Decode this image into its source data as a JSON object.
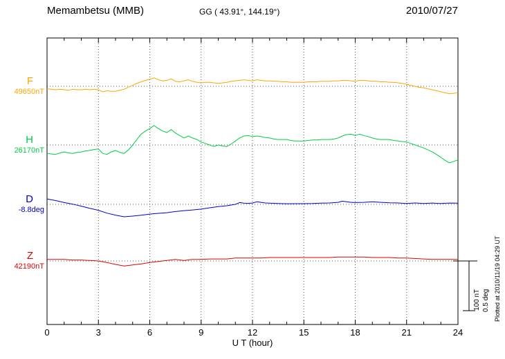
{
  "chart_data": {
    "type": "line",
    "title": "Memambetsu (MMB)",
    "subtitle": "GG ( 43.91°, 144.19°)",
    "date": "2010/07/27",
    "xlabel": "U T (hour)",
    "x_range": [
      0,
      24
    ],
    "x_ticks": [
      0,
      3,
      6,
      9,
      12,
      15,
      18,
      21,
      24
    ],
    "x_minor_step_hours": 1,
    "grid": {
      "vertical": "dotted lines at 3-hour ticks",
      "horizontal": "dotted line at each series baseline"
    },
    "scale": {
      "nT_per_bar": 100,
      "deg_per_bar": 0.5,
      "nT_label": "100 nT",
      "deg_label": "0.5 deg"
    },
    "plotted_at": "Plotted at 2010/11/19 04:29 UT",
    "series": [
      {
        "id": "F",
        "label": "F",
        "baseline_label": "49650nT",
        "baseline_value": 49650,
        "unit": "nT",
        "color": "#FFA500",
        "points_t_offset": [
          [
            0,
            -5
          ],
          [
            0.25,
            -6
          ],
          [
            0.5,
            -7
          ],
          [
            0.75,
            -6
          ],
          [
            1,
            -7
          ],
          [
            1.25,
            -8
          ],
          [
            1.5,
            -6
          ],
          [
            1.75,
            -7
          ],
          [
            2,
            -7
          ],
          [
            2.25,
            -6
          ],
          [
            2.5,
            -7
          ],
          [
            2.75,
            -6
          ],
          [
            3,
            -7
          ],
          [
            3.25,
            -11
          ],
          [
            3.5,
            -9
          ],
          [
            3.75,
            -10
          ],
          [
            4,
            -10
          ],
          [
            4.25,
            -8
          ],
          [
            4.5,
            -6
          ],
          [
            4.75,
            -2
          ],
          [
            5,
            2
          ],
          [
            5.25,
            6
          ],
          [
            5.5,
            9
          ],
          [
            5.75,
            12
          ],
          [
            6,
            14
          ],
          [
            6.25,
            17
          ],
          [
            6.5,
            13
          ],
          [
            6.75,
            11
          ],
          [
            7,
            12
          ],
          [
            7.25,
            15
          ],
          [
            7.5,
            10
          ],
          [
            7.75,
            9
          ],
          [
            8,
            11
          ],
          [
            8.25,
            13
          ],
          [
            8.5,
            10
          ],
          [
            8.75,
            8
          ],
          [
            9,
            7
          ],
          [
            9.25,
            8
          ],
          [
            9.5,
            8
          ],
          [
            9.75,
            7
          ],
          [
            10,
            6
          ],
          [
            10.25,
            7
          ],
          [
            10.5,
            8
          ],
          [
            10.75,
            10
          ],
          [
            11,
            11
          ],
          [
            11.25,
            12
          ],
          [
            11.5,
            13
          ],
          [
            11.75,
            12
          ],
          [
            12,
            11
          ],
          [
            12.25,
            13
          ],
          [
            12.5,
            12
          ],
          [
            12.75,
            11
          ],
          [
            13,
            11
          ],
          [
            13.25,
            10
          ],
          [
            13.5,
            10
          ],
          [
            13.75,
            9
          ],
          [
            14,
            9
          ],
          [
            14.25,
            8
          ],
          [
            14.5,
            8
          ],
          [
            14.75,
            8
          ],
          [
            15,
            8
          ],
          [
            15.25,
            9
          ],
          [
            15.5,
            9
          ],
          [
            15.75,
            9
          ],
          [
            16,
            10
          ],
          [
            16.25,
            10
          ],
          [
            16.5,
            10
          ],
          [
            16.75,
            11
          ],
          [
            17,
            11
          ],
          [
            17.25,
            12
          ],
          [
            17.5,
            12
          ],
          [
            17.75,
            11
          ],
          [
            18,
            10
          ],
          [
            18.25,
            12
          ],
          [
            18.5,
            12
          ],
          [
            18.75,
            11
          ],
          [
            19,
            10
          ],
          [
            19.25,
            10
          ],
          [
            19.5,
            9
          ],
          [
            19.75,
            9
          ],
          [
            20,
            8
          ],
          [
            20.25,
            8
          ],
          [
            20.5,
            7
          ],
          [
            20.75,
            6
          ],
          [
            21,
            4
          ],
          [
            21.25,
            2
          ],
          [
            21.5,
            0
          ],
          [
            21.75,
            -2
          ],
          [
            22,
            -3
          ],
          [
            22.25,
            -5
          ],
          [
            22.5,
            -7
          ],
          [
            22.75,
            -9
          ],
          [
            23,
            -11
          ],
          [
            23.25,
            -13
          ],
          [
            23.5,
            -15
          ],
          [
            23.75,
            -14
          ],
          [
            24,
            -13
          ]
        ]
      },
      {
        "id": "H",
        "label": "H",
        "baseline_label": "26170nT",
        "baseline_value": 26170,
        "unit": "nT",
        "color": "#00CC44",
        "points_t_offset": [
          [
            0,
            -17
          ],
          [
            0.25,
            -18
          ],
          [
            0.5,
            -19
          ],
          [
            0.75,
            -16
          ],
          [
            1,
            -14
          ],
          [
            1.25,
            -16
          ],
          [
            1.5,
            -17
          ],
          [
            1.75,
            -15
          ],
          [
            2,
            -14
          ],
          [
            2.25,
            -12
          ],
          [
            2.5,
            -11
          ],
          [
            2.75,
            -9
          ],
          [
            3,
            -8
          ],
          [
            3.25,
            -17
          ],
          [
            3.5,
            -19
          ],
          [
            3.75,
            -14
          ],
          [
            4,
            -11
          ],
          [
            4.25,
            -15
          ],
          [
            4.5,
            -17
          ],
          [
            4.75,
            -10
          ],
          [
            5,
            0
          ],
          [
            5.25,
            11
          ],
          [
            5.5,
            22
          ],
          [
            5.75,
            28
          ],
          [
            6,
            33
          ],
          [
            6.25,
            39
          ],
          [
            6.5,
            33
          ],
          [
            6.75,
            28
          ],
          [
            7,
            25
          ],
          [
            7.25,
            31
          ],
          [
            7.5,
            24
          ],
          [
            7.75,
            19
          ],
          [
            8,
            14
          ],
          [
            8.25,
            18
          ],
          [
            8.5,
            14
          ],
          [
            8.75,
            11
          ],
          [
            9,
            6
          ],
          [
            9.25,
            3
          ],
          [
            9.5,
            0
          ],
          [
            9.75,
            -3
          ],
          [
            10,
            0
          ],
          [
            10.25,
            -2
          ],
          [
            10.5,
            -3
          ],
          [
            10.75,
            2
          ],
          [
            11,
            8
          ],
          [
            11.25,
            14
          ],
          [
            11.5,
            18
          ],
          [
            11.75,
            19
          ],
          [
            12,
            17
          ],
          [
            12.25,
            18
          ],
          [
            12.5,
            17
          ],
          [
            12.75,
            15
          ],
          [
            13,
            14
          ],
          [
            13.25,
            12
          ],
          [
            13.5,
            11
          ],
          [
            13.75,
            11
          ],
          [
            14,
            11
          ],
          [
            14.25,
            9
          ],
          [
            14.5,
            8
          ],
          [
            14.75,
            8
          ],
          [
            15,
            8
          ],
          [
            15.25,
            9
          ],
          [
            15.5,
            10
          ],
          [
            15.75,
            10
          ],
          [
            16,
            11
          ],
          [
            16.25,
            11
          ],
          [
            16.5,
            11
          ],
          [
            16.75,
            12
          ],
          [
            17,
            14
          ],
          [
            17.25,
            18
          ],
          [
            17.5,
            21
          ],
          [
            17.75,
            22
          ],
          [
            18,
            19
          ],
          [
            18.25,
            22
          ],
          [
            18.5,
            19
          ],
          [
            18.75,
            17
          ],
          [
            19,
            14
          ],
          [
            19.25,
            12
          ],
          [
            19.5,
            11
          ],
          [
            19.75,
            11
          ],
          [
            20,
            11
          ],
          [
            20.25,
            9
          ],
          [
            20.5,
            8
          ],
          [
            20.75,
            7
          ],
          [
            21,
            6
          ],
          [
            21.25,
            3
          ],
          [
            21.5,
            0
          ],
          [
            21.75,
            -3
          ],
          [
            22,
            -6
          ],
          [
            22.25,
            -10
          ],
          [
            22.5,
            -14
          ],
          [
            22.75,
            -19
          ],
          [
            23,
            -25
          ],
          [
            23.25,
            -31
          ],
          [
            23.5,
            -36
          ],
          [
            23.75,
            -33
          ],
          [
            24,
            -30
          ]
        ]
      },
      {
        "id": "D",
        "label": "D",
        "baseline_label": "-8.8deg",
        "baseline_value": -8.8,
        "unit": "deg",
        "color": "#0000CC",
        "points_t_offset": [
          [
            0,
            0.055
          ],
          [
            0.5,
            0.038
          ],
          [
            1,
            0.018
          ],
          [
            1.5,
            0.002
          ],
          [
            2,
            -0.018
          ],
          [
            2.5,
            -0.04
          ],
          [
            3,
            -0.06
          ],
          [
            3.5,
            -0.088
          ],
          [
            4,
            -0.108
          ],
          [
            4.5,
            -0.125
          ],
          [
            5,
            -0.118
          ],
          [
            5.5,
            -0.11
          ],
          [
            6,
            -0.098
          ],
          [
            6.5,
            -0.09
          ],
          [
            7,
            -0.084
          ],
          [
            7.5,
            -0.072
          ],
          [
            8,
            -0.063
          ],
          [
            8.5,
            -0.056
          ],
          [
            9,
            -0.048
          ],
          [
            9.5,
            -0.035
          ],
          [
            10,
            -0.022
          ],
          [
            10.5,
            -0.014
          ],
          [
            11,
            0
          ],
          [
            11.25,
            0.018
          ],
          [
            11.5,
            0.012
          ],
          [
            11.75,
            0.01
          ],
          [
            12,
            0.014
          ],
          [
            12.25,
            0.026
          ],
          [
            12.5,
            0.02
          ],
          [
            12.75,
            0.014
          ],
          [
            13,
            0.012
          ],
          [
            13.5,
            0.008
          ],
          [
            14,
            0.006
          ],
          [
            14.5,
            0.007
          ],
          [
            15,
            0.007
          ],
          [
            15.5,
            0.008
          ],
          [
            16,
            0.012
          ],
          [
            16.5,
            0.014
          ],
          [
            17,
            0.02
          ],
          [
            17.25,
            0.032
          ],
          [
            17.5,
            0.026
          ],
          [
            17.75,
            0.02
          ],
          [
            18,
            0.018
          ],
          [
            18.5,
            0.02
          ],
          [
            19,
            0.026
          ],
          [
            19.5,
            0.02
          ],
          [
            20,
            0.015
          ],
          [
            20.5,
            0.014
          ],
          [
            21,
            0.008
          ],
          [
            21.5,
            0.014
          ],
          [
            22,
            0.008
          ],
          [
            22.5,
            0.013
          ],
          [
            23,
            0.008
          ],
          [
            23.5,
            0.013
          ],
          [
            24,
            0.012
          ]
        ]
      },
      {
        "id": "Z",
        "label": "Z",
        "baseline_label": "42190nT",
        "baseline_value": 42190,
        "unit": "nT",
        "color": "#DD0000",
        "points_t_offset": [
          [
            0,
            3
          ],
          [
            0.5,
            3
          ],
          [
            1,
            3
          ],
          [
            1.5,
            2
          ],
          [
            2,
            2
          ],
          [
            2.5,
            1
          ],
          [
            3,
            0
          ],
          [
            3.5,
            -3
          ],
          [
            4,
            -7
          ],
          [
            4.5,
            -10
          ],
          [
            5,
            -8
          ],
          [
            5.5,
            -6
          ],
          [
            6,
            -3
          ],
          [
            6.5,
            -1
          ],
          [
            7,
            1
          ],
          [
            7.5,
            3
          ],
          [
            8,
            1
          ],
          [
            8.5,
            3
          ],
          [
            9,
            3
          ],
          [
            9.5,
            4
          ],
          [
            10,
            4
          ],
          [
            10.5,
            4
          ],
          [
            11,
            6
          ],
          [
            11.5,
            6
          ],
          [
            12,
            6
          ],
          [
            12.5,
            6
          ],
          [
            13,
            7
          ],
          [
            13.5,
            7
          ],
          [
            14,
            7
          ],
          [
            14.5,
            7
          ],
          [
            15,
            7
          ],
          [
            15.5,
            7
          ],
          [
            16,
            7
          ],
          [
            16.5,
            7
          ],
          [
            17,
            8
          ],
          [
            17.5,
            8
          ],
          [
            18,
            8
          ],
          [
            18.5,
            8
          ],
          [
            19,
            7
          ],
          [
            19.5,
            7
          ],
          [
            20,
            7
          ],
          [
            20.5,
            6
          ],
          [
            21,
            6
          ],
          [
            21.5,
            5
          ],
          [
            22,
            4
          ],
          [
            22.5,
            3
          ],
          [
            23,
            3
          ],
          [
            23.5,
            3
          ],
          [
            24,
            3
          ]
        ]
      }
    ]
  }
}
